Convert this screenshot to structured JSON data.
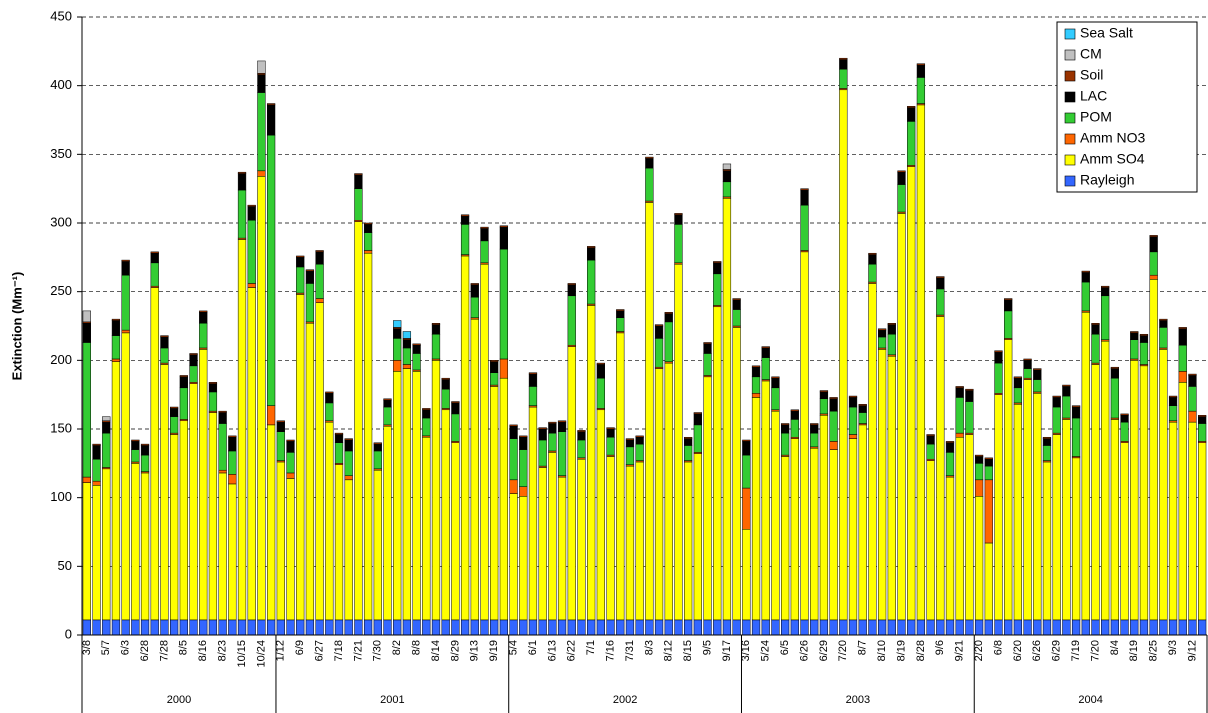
{
  "chart_data": {
    "type": "stacked_bar",
    "y_label": "Extinction (Mm⁻¹)",
    "ylim": [
      0,
      450
    ],
    "yticks": [
      0,
      50,
      100,
      150,
      200,
      250,
      300,
      350,
      400,
      450
    ],
    "grid": true,
    "legend_position": "upper-right",
    "categories": [
      "3/8",
      null,
      "5/7",
      null,
      "6/3",
      null,
      "6/28",
      null,
      "7/28",
      null,
      "8/5",
      null,
      "8/16",
      null,
      "8/23",
      null,
      "10/15",
      null,
      "10/24",
      null,
      "1/12",
      null,
      "6/9",
      null,
      "6/27",
      null,
      "7/18",
      null,
      "7/21",
      null,
      "7/30",
      null,
      "8/2",
      null,
      "8/8",
      null,
      "8/14",
      null,
      "8/29",
      null,
      "9/13",
      null,
      "9/19",
      null,
      "5/4",
      null,
      "6/1",
      null,
      "6/13",
      null,
      "6/22",
      null,
      "7/1",
      null,
      "7/16",
      null,
      "7/31",
      null,
      "8/3",
      null,
      "8/12",
      null,
      "8/15",
      null,
      "9/5",
      null,
      "9/17",
      null,
      "3/16",
      null,
      "5/24",
      null,
      "6/5",
      null,
      "6/26",
      null,
      "6/29",
      null,
      "7/20",
      null,
      "8/7",
      null,
      "8/10",
      null,
      "8/19",
      null,
      "8/28",
      null,
      "9/6",
      null,
      "9/21",
      null,
      "2/20",
      null,
      "6/8",
      null,
      "6/20",
      null,
      "6/26",
      null,
      "6/29",
      null,
      "7/19",
      null,
      "7/20",
      null,
      "8/4",
      null,
      "8/19",
      null,
      "8/25",
      null,
      "9/3",
      null,
      "9/12",
      null
    ],
    "groups": [
      {
        "label": "2000",
        "count": 20
      },
      {
        "label": "2001",
        "count": 24
      },
      {
        "label": "2002",
        "count": 24
      },
      {
        "label": "2003",
        "count": 24
      },
      {
        "label": "2004",
        "count": 24
      }
    ],
    "series": [
      {
        "name": "Rayleigh",
        "color": "#3366ff",
        "values": [
          11,
          11,
          11,
          11,
          11,
          11,
          11,
          11,
          11,
          11,
          11,
          11,
          11,
          11,
          11,
          11,
          11,
          11,
          11,
          11,
          11,
          11,
          11,
          11,
          11,
          11,
          11,
          11,
          11,
          11,
          11,
          11,
          11,
          11,
          11,
          11,
          11,
          11,
          11,
          11,
          11,
          11,
          11,
          11,
          11,
          11,
          11,
          11,
          11,
          11,
          11,
          11,
          11,
          11,
          11,
          11,
          11,
          11,
          11,
          11,
          11,
          11,
          11,
          11,
          11,
          11,
          11,
          11,
          11,
          11,
          11,
          11,
          11,
          11,
          11,
          11,
          11,
          11,
          11,
          11,
          11,
          11,
          11,
          11,
          11,
          11,
          11,
          11,
          11,
          11,
          11,
          11,
          11,
          11,
          11,
          11,
          11,
          11,
          11,
          11,
          11,
          11,
          11,
          11,
          11,
          11,
          11,
          11,
          11,
          11,
          11,
          11,
          11,
          11,
          11,
          11
        ]
      },
      {
        "name": "Amm SO4",
        "color": "#ffff00",
        "values": [
          100,
          98,
          110,
          188,
          209,
          114,
          107,
          242,
          186,
          135,
          145,
          172,
          197,
          151,
          107,
          99,
          277,
          242,
          323,
          142,
          115,
          103,
          237,
          216,
          231,
          144,
          113,
          102,
          290,
          267,
          109,
          141,
          181,
          183,
          181,
          133,
          189,
          153,
          129,
          265,
          219,
          259,
          170,
          176,
          92,
          90,
          155,
          111,
          122,
          104,
          199,
          117,
          229,
          153,
          119,
          209,
          112,
          115,
          304,
          183,
          187,
          259,
          115,
          121,
          177,
          228,
          307,
          213,
          66,
          162,
          174,
          152,
          119,
          132,
          268,
          125,
          149,
          124,
          386,
          132,
          142,
          245,
          197,
          192,
          296,
          330,
          375,
          116,
          221,
          104,
          133,
          135,
          90,
          56,
          164,
          204,
          157,
          175,
          165,
          115,
          135,
          146,
          118,
          224,
          186,
          203,
          146,
          129,
          189,
          185,
          248,
          197,
          144,
          173,
          144,
          129
        ]
      },
      {
        "name": "Amm NO3",
        "color": "#ff6600",
        "values": [
          4,
          3,
          1,
          2,
          2,
          1,
          1,
          1,
          1,
          1,
          1,
          1,
          1,
          1,
          2,
          7,
          1,
          3,
          4,
          14,
          1,
          4,
          1,
          1,
          3,
          1,
          1,
          3,
          1,
          2,
          1,
          1,
          8,
          3,
          1,
          1,
          1,
          1,
          1,
          1,
          1,
          1,
          1,
          14,
          10,
          7,
          1,
          1,
          1,
          1,
          1,
          1,
          1,
          1,
          1,
          1,
          1,
          1,
          1,
          1,
          1,
          1,
          1,
          1,
          1,
          1,
          1,
          1,
          30,
          3,
          1,
          1,
          1,
          1,
          1,
          1,
          1,
          6,
          1,
          3,
          1,
          1,
          1,
          1,
          1,
          1,
          1,
          1,
          1,
          1,
          3,
          1,
          12,
          46,
          1,
          1,
          1,
          1,
          1,
          1,
          1,
          1,
          1,
          1,
          1,
          1,
          1,
          1,
          1,
          1,
          3,
          1,
          1,
          8,
          8,
          1
        ]
      },
      {
        "name": "POM",
        "color": "#33cc33",
        "values": [
          98,
          16,
          25,
          17,
          40,
          9,
          12,
          17,
          11,
          12,
          23,
          12,
          18,
          14,
          34,
          17,
          35,
          46,
          57,
          197,
          21,
          15,
          19,
          28,
          25,
          13,
          15,
          18,
          23,
          13,
          13,
          13,
          16,
          12,
          12,
          13,
          18,
          14,
          20,
          22,
          15,
          16,
          9,
          80,
          30,
          27,
          14,
          19,
          13,
          32,
          36,
          13,
          32,
          22,
          13,
          10,
          13,
          12,
          24,
          21,
          29,
          28,
          11,
          20,
          16,
          23,
          11,
          12,
          24,
          12,
          16,
          16,
          16,
          13,
          33,
          10,
          11,
          22,
          14,
          20,
          8,
          13,
          8,
          15,
          20,
          32,
          19,
          11,
          19,
          17,
          26,
          23,
          12,
          10,
          22,
          20,
          11,
          7,
          9,
          11,
          19,
          16,
          28,
          21,
          21,
          32,
          29,
          14,
          14,
          16,
          17,
          15,
          11,
          19,
          18,
          13
        ]
      },
      {
        "name": "LAC",
        "color": "#000000",
        "values": [
          14,
          10,
          8,
          11,
          10,
          6,
          7,
          7,
          8,
          6,
          8,
          8,
          8,
          6,
          8,
          10,
          12,
          10,
          13,
          22,
          7,
          8,
          7,
          9,
          9,
          7,
          6,
          8,
          10,
          6,
          5,
          5,
          7,
          6,
          6,
          6,
          7,
          7,
          8,
          6,
          9,
          9,
          8,
          16,
          9,
          9,
          9,
          8,
          7,
          7,
          8,
          6,
          9,
          10,
          6,
          5,
          5,
          5,
          7,
          9,
          6,
          7,
          5,
          8,
          7,
          8,
          8,
          7,
          10,
          7,
          7,
          7,
          6,
          6,
          11,
          6,
          5,
          9,
          7,
          7,
          5,
          7,
          5,
          7,
          9,
          10,
          9,
          6,
          8,
          7,
          7,
          8,
          5,
          5,
          8,
          8,
          7,
          6,
          7,
          5,
          7,
          7,
          8,
          7,
          7,
          6,
          7,
          5,
          5,
          5,
          11,
          5,
          6,
          12,
          8,
          5
        ]
      },
      {
        "name": "Soil",
        "color": "#993300",
        "values": [
          1,
          1,
          1,
          1,
          1,
          1,
          1,
          1,
          1,
          1,
          1,
          1,
          1,
          1,
          1,
          1,
          1,
          1,
          1,
          1,
          1,
          1,
          1,
          1,
          1,
          1,
          1,
          1,
          1,
          1,
          1,
          1,
          1,
          1,
          1,
          1,
          1,
          1,
          1,
          1,
          1,
          1,
          1,
          1,
          1,
          1,
          1,
          1,
          1,
          1,
          1,
          1,
          1,
          1,
          1,
          1,
          1,
          1,
          1,
          1,
          1,
          1,
          1,
          1,
          1,
          1,
          1,
          1,
          1,
          1,
          1,
          1,
          1,
          1,
          1,
          1,
          1,
          1,
          1,
          1,
          1,
          1,
          1,
          1,
          1,
          1,
          1,
          1,
          1,
          1,
          1,
          1,
          1,
          1,
          1,
          1,
          1,
          1,
          1,
          1,
          1,
          1,
          1,
          1,
          1,
          1,
          1,
          1,
          1,
          1,
          1,
          1,
          1,
          1,
          1,
          1
        ]
      },
      {
        "name": "CM",
        "color": "#c0c0c0",
        "values": [
          8,
          0,
          3,
          0,
          0,
          0,
          0,
          0,
          0,
          0,
          0,
          0,
          0,
          0,
          0,
          0,
          0,
          0,
          9,
          0,
          0,
          0,
          0,
          0,
          0,
          0,
          0,
          0,
          0,
          0,
          0,
          0,
          0,
          0,
          0,
          0,
          0,
          0,
          0,
          0,
          0,
          0,
          0,
          0,
          0,
          0,
          0,
          0,
          0,
          0,
          0,
          0,
          0,
          0,
          0,
          0,
          0,
          0,
          0,
          0,
          0,
          0,
          0,
          0,
          0,
          0,
          4,
          0,
          0,
          0,
          0,
          0,
          0,
          0,
          0,
          0,
          0,
          0,
          0,
          0,
          0,
          0,
          0,
          0,
          0,
          0,
          0,
          0,
          0,
          0,
          0,
          0,
          0,
          0,
          0,
          0,
          0,
          0,
          0,
          0,
          0,
          0,
          0,
          0,
          0,
          0,
          0,
          0,
          0,
          0,
          0,
          0,
          0,
          0,
          0,
          0
        ]
      },
      {
        "name": "Sea Salt",
        "color": "#33ccff",
        "values": [
          0,
          0,
          0,
          0,
          0,
          0,
          0,
          0,
          0,
          0,
          0,
          0,
          0,
          0,
          0,
          0,
          0,
          0,
          0,
          0,
          0,
          0,
          0,
          0,
          0,
          0,
          0,
          0,
          0,
          0,
          0,
          0,
          5,
          5,
          0,
          0,
          0,
          0,
          0,
          0,
          0,
          0,
          0,
          0,
          0,
          0,
          0,
          0,
          0,
          0,
          0,
          0,
          0,
          0,
          0,
          0,
          0,
          0,
          0,
          0,
          0,
          0,
          0,
          0,
          0,
          0,
          0,
          0,
          0,
          0,
          0,
          0,
          0,
          0,
          0,
          0,
          0,
          0,
          0,
          0,
          0,
          0,
          0,
          0,
          0,
          0,
          0,
          0,
          0,
          0,
          0,
          0,
          0,
          0,
          0,
          0,
          0,
          0,
          0,
          0,
          0,
          0,
          0,
          0,
          0,
          0,
          0,
          0,
          0,
          0,
          0,
          0,
          0,
          0,
          0,
          0
        ]
      }
    ]
  }
}
